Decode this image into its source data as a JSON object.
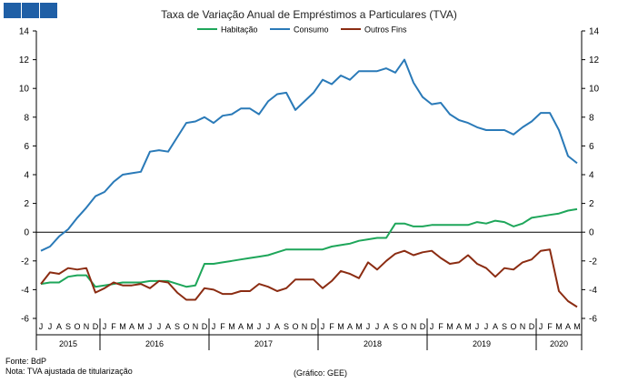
{
  "brand": {
    "color": "#1f5fa6",
    "logo_squares": 3
  },
  "chart_data": {
    "type": "line",
    "title": "Taxa de Variação Anual de Empréstimos a Particulares (TVA)",
    "xlabel": "",
    "ylabel": "",
    "ylim": [
      -6,
      14
    ],
    "yticks": [
      14,
      12,
      10,
      8,
      6,
      4,
      2,
      0,
      -2,
      -4,
      -6
    ],
    "dual_y_axis": true,
    "grid": false,
    "legend_position": "top",
    "month_labels": [
      "J",
      "J",
      "A",
      "S",
      "O",
      "N",
      "D",
      "J",
      "F",
      "M",
      "A",
      "M",
      "J",
      "J",
      "A",
      "S",
      "O",
      "N",
      "D",
      "J",
      "F",
      "M",
      "A",
      "M",
      "J",
      "J",
      "A",
      "S",
      "O",
      "N",
      "D",
      "J",
      "F",
      "M",
      "A",
      "M",
      "J",
      "J",
      "A",
      "S",
      "O",
      "N",
      "D",
      "J",
      "F",
      "M",
      "A",
      "M",
      "J",
      "J",
      "A",
      "S",
      "O",
      "N",
      "D",
      "J",
      "F",
      "M",
      "A",
      "M"
    ],
    "year_labels": [
      "2015",
      "2016",
      "2017",
      "2018",
      "2019",
      "2020"
    ],
    "series": [
      {
        "name": "Habitação",
        "color": "#1ea65a",
        "values": [
          -3.6,
          -3.5,
          -3.5,
          -3.1,
          -3.0,
          -3.0,
          -3.8,
          -3.7,
          -3.6,
          -3.5,
          -3.5,
          -3.5,
          -3.4,
          -3.4,
          -3.4,
          -3.6,
          -3.8,
          -3.7,
          -2.2,
          -2.2,
          -2.1,
          -2.0,
          -1.9,
          -1.8,
          -1.7,
          -1.6,
          -1.4,
          -1.2,
          -1.2,
          -1.2,
          -1.2,
          -1.2,
          -1.0,
          -0.9,
          -0.8,
          -0.6,
          -0.5,
          -0.4,
          -0.4,
          0.6,
          0.6,
          0.4,
          0.4,
          0.5,
          0.5,
          0.5,
          0.5,
          0.5,
          0.7,
          0.6,
          0.8,
          0.7,
          0.4,
          0.6,
          1.0,
          1.1,
          1.2,
          1.3,
          1.5,
          1.6
        ]
      },
      {
        "name": "Consumo",
        "color": "#2a7ab8",
        "values": [
          -1.3,
          -1.0,
          -0.3,
          0.2,
          1.0,
          1.7,
          2.5,
          2.8,
          3.5,
          4.0,
          4.1,
          4.2,
          5.6,
          5.7,
          5.6,
          6.6,
          7.6,
          7.7,
          8.0,
          7.6,
          8.1,
          8.2,
          8.6,
          8.6,
          8.2,
          9.1,
          9.6,
          9.7,
          8.5,
          9.1,
          9.7,
          10.6,
          10.3,
          10.9,
          10.6,
          11.2,
          11.2,
          11.2,
          11.4,
          11.1,
          12.0,
          10.4,
          9.4,
          8.9,
          9.0,
          8.2,
          7.8,
          7.6,
          7.3,
          7.1,
          7.1,
          7.1,
          6.8,
          7.3,
          7.7,
          8.3,
          8.3,
          7.1,
          5.3,
          4.8
        ]
      },
      {
        "name": "Outros Fins",
        "color": "#8b2c12",
        "values": [
          -3.6,
          -2.8,
          -2.9,
          -2.5,
          -2.6,
          -2.5,
          -4.2,
          -3.9,
          -3.5,
          -3.7,
          -3.7,
          -3.6,
          -3.9,
          -3.4,
          -3.5,
          -4.2,
          -4.7,
          -4.7,
          -3.9,
          -4.0,
          -4.3,
          -4.3,
          -4.1,
          -4.1,
          -3.6,
          -3.8,
          -4.1,
          -3.9,
          -3.3,
          -3.3,
          -3.3,
          -3.9,
          -3.4,
          -2.7,
          -2.9,
          -3.2,
          -2.1,
          -2.6,
          -2.0,
          -1.5,
          -1.3,
          -1.6,
          -1.4,
          -1.3,
          -1.8,
          -2.2,
          -2.1,
          -1.6,
          -2.2,
          -2.5,
          -3.1,
          -2.5,
          -2.6,
          -2.1,
          -1.9,
          -1.3,
          -1.2,
          -4.1,
          -4.8,
          -5.2
        ]
      }
    ]
  },
  "footer": {
    "source": "Fonte: BdP",
    "note": "Nota: TVA ajustada de titularização",
    "credit": "(Gráfico: GEE)"
  }
}
